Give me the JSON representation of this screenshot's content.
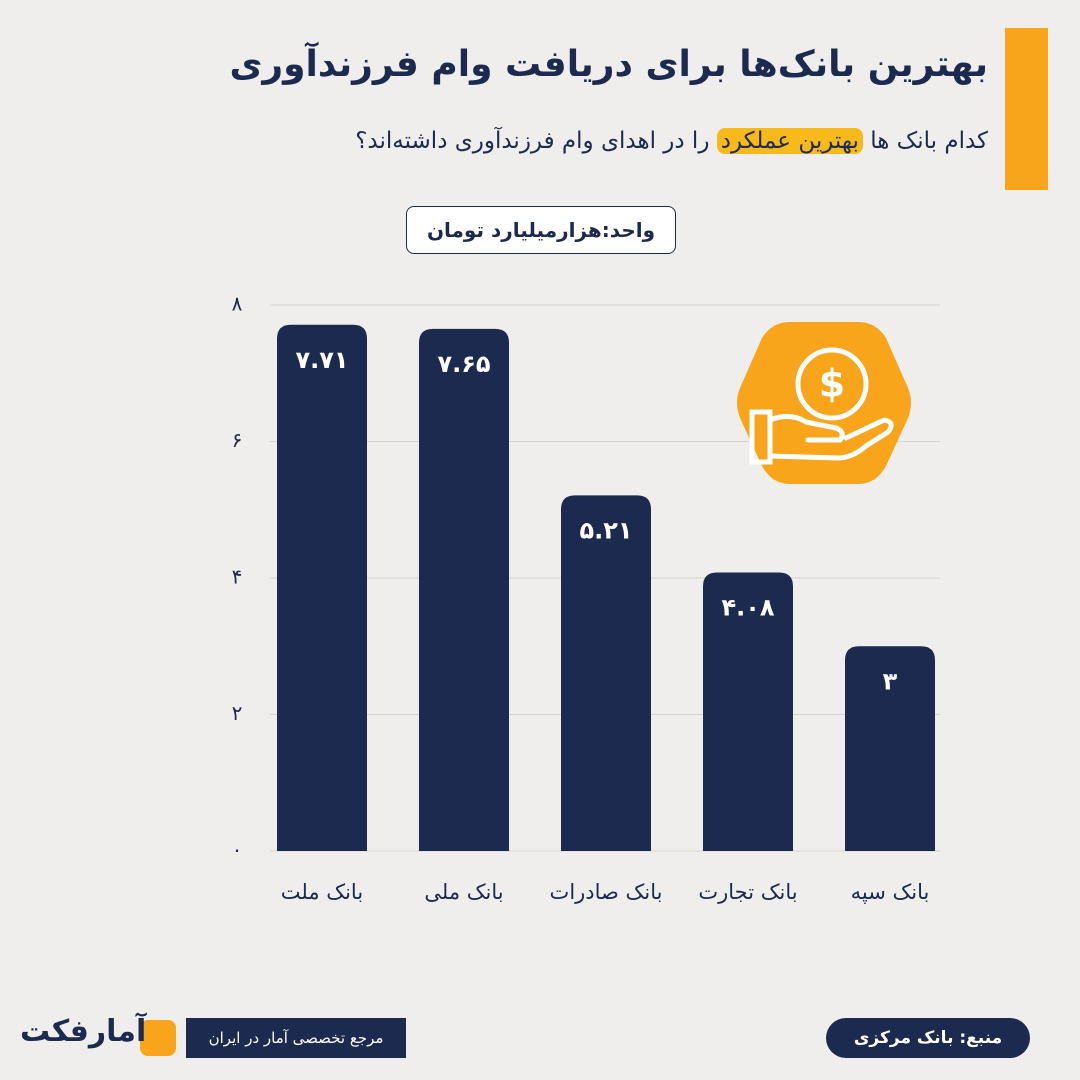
{
  "chart_data": {
    "type": "bar",
    "title": "بهترین بانک‌ها برای دریافت وام فرزندآوری",
    "subtitle": [
      "کدام بانک ها",
      "بهترین عملکرد",
      "را در اهدای وام فرزندآوری  داشته‌اند؟"
    ],
    "unit": "واحد:هزارمیلیارد تومان",
    "categories": [
      "بانک ملت",
      "بانک ملی",
      "بانک صادرات",
      "بانک تجارت",
      "بانک سپه"
    ],
    "values": [
      7.71,
      7.65,
      5.21,
      4.08,
      3
    ],
    "value_labels": [
      "۷.۷۱",
      "۷.۶۵",
      "۵.۲۱",
      "۴.۰۸",
      "۳"
    ],
    "color": "#1b2a4e",
    "ylim": [
      0,
      8
    ],
    "yticks": [
      {
        "value": 0,
        "label": "۰"
      },
      {
        "value": 2,
        "label": "۲"
      },
      {
        "value": 4,
        "label": "۴"
      },
      {
        "value": 6,
        "label": "۶"
      },
      {
        "value": 8,
        "label": "۸"
      }
    ],
    "grid": true,
    "source": "منبع: بانک مرکزی",
    "tagline": "مرجع تخصصی آمار در ایران",
    "brand": "آمارفکت"
  }
}
